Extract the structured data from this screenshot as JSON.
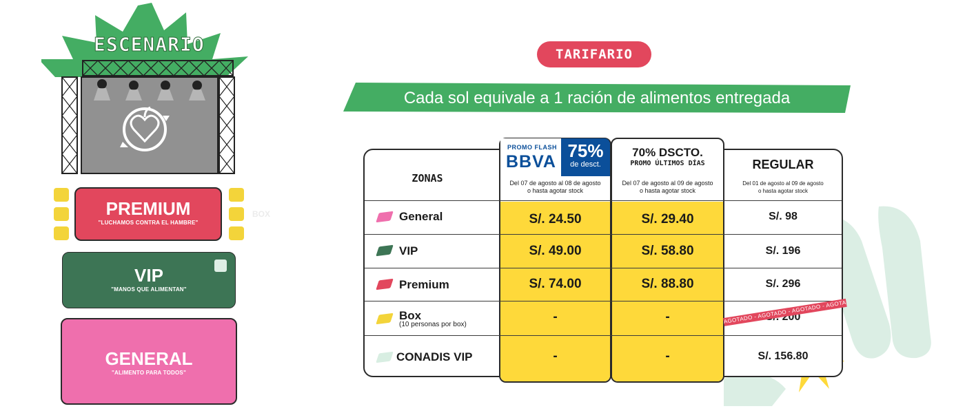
{
  "map": {
    "stage_title": "ESCENARIO",
    "zones": [
      {
        "id": "premium",
        "name": "PREMIUM",
        "motto": "\"LUCHAMOS CONTRA EL HAMBRE\"",
        "color": "#e2475d"
      },
      {
        "id": "vip",
        "name": "VIP",
        "motto": "\"MANOS QUE ALIMENTAN\"",
        "color": "#3d7555"
      },
      {
        "id": "general",
        "name": "GENERAL",
        "motto": "\"ALIMENTO PARA TODOS\"",
        "color": "#ef6fad"
      }
    ],
    "faded_label": "BOX"
  },
  "header": {
    "pill": "TARIFARIO",
    "banner": "Cada sol equivale a 1 ración de alimentos entregada"
  },
  "table": {
    "zones_header": "ZONAS",
    "col_bbva": {
      "promo_flash": "PROMO FLASH",
      "logo": "BBVA",
      "percent": "75%",
      "desc": "de desct.",
      "dates": "Del 07 de agosto al 08 de agosto",
      "stock": "o hasta agotar stock"
    },
    "col_promo": {
      "title": "70% DSCTO.",
      "subtitle": "PROMO ÚLTIMOS DÍAS",
      "dates": "Del 07 de agosto al 09 de agosto",
      "stock": "o hasta agotar stock"
    },
    "col_regular": {
      "title": "REGULAR",
      "dates": "Del 01 de agosto al 09 de agosto",
      "stock": "o hasta agotar stock"
    },
    "rows": [
      {
        "zone": "General",
        "note": "",
        "bbva": "S/. 24.50",
        "promo": "S/. 29.40",
        "regular": "S/. 98",
        "color": "#ef6fad"
      },
      {
        "zone": "VIP",
        "note": "",
        "bbva": "S/. 49.00",
        "promo": "S/. 58.80",
        "regular": "S/. 196",
        "color": "#3d7555"
      },
      {
        "zone": "Premium",
        "note": "",
        "bbva": "S/. 74.00",
        "promo": "S/. 88.80",
        "regular": "S/. 296",
        "color": "#e2475d"
      },
      {
        "zone": "Box",
        "note": "(10 personas por box)",
        "bbva": "-",
        "promo": "-",
        "regular": "S/. 200",
        "color": "#f3d43a"
      },
      {
        "zone": "CONADIS VIP",
        "note": "",
        "bbva": "-",
        "promo": "-",
        "regular": "S/. 156.80",
        "color": "#d8eee2"
      }
    ],
    "sold_out_ribbon": "AGOTADO - AGOTADO - AGOTADO - AGOTADO - AGOTADO",
    "highlight_color": "#fed93a"
  }
}
